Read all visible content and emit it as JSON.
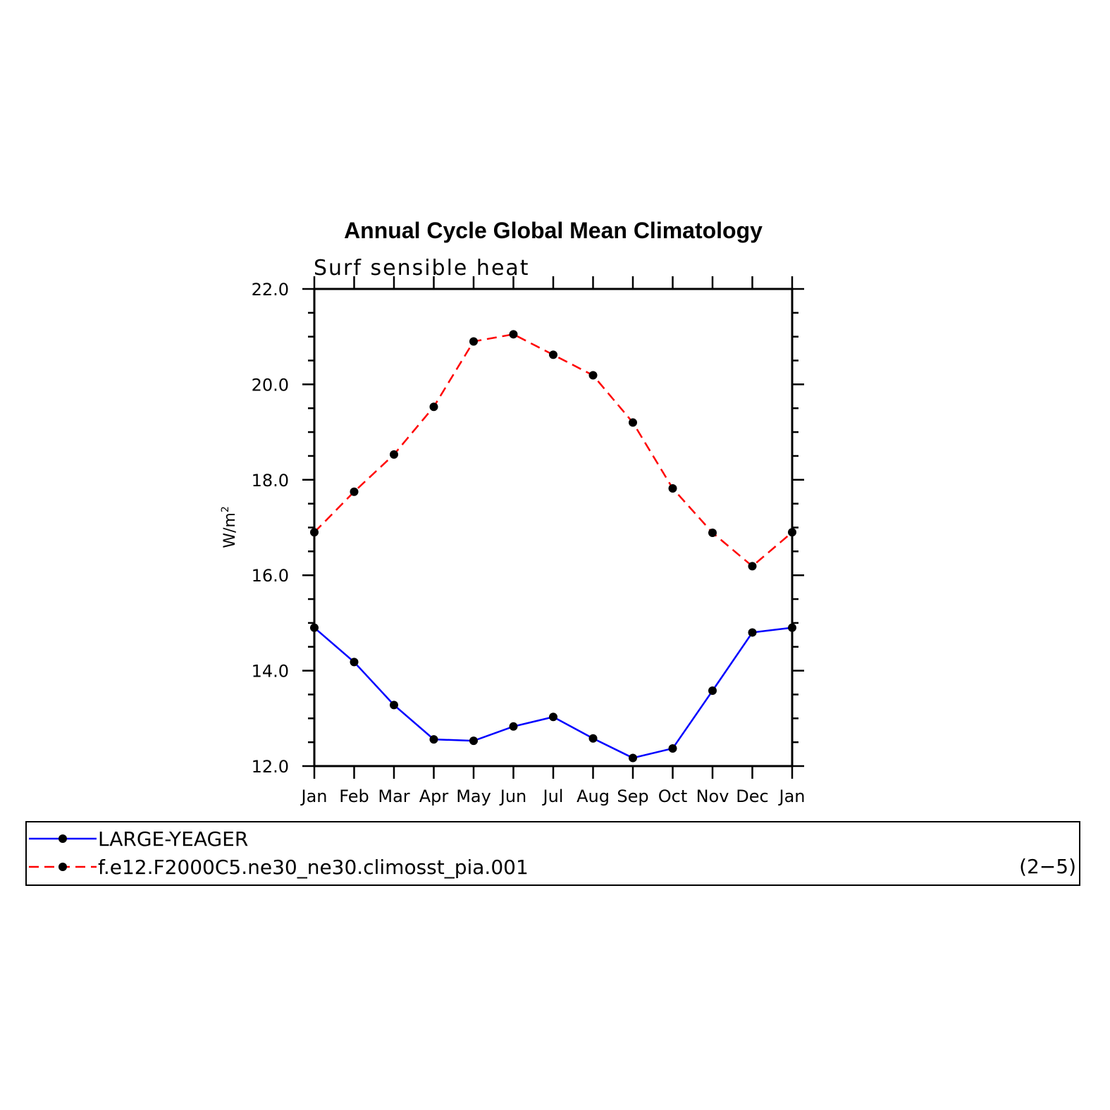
{
  "chart_data": {
    "type": "line",
    "title": "Annual Cycle Global Mean Climatology",
    "subtitle": "Surf  sensible  heat",
    "ylabel": "W/m",
    "ylabel_sup": "2",
    "ylim": [
      12.0,
      22.0
    ],
    "yticks": [
      "12.0",
      "14.0",
      "16.0",
      "18.0",
      "20.0",
      "22.0"
    ],
    "categories": [
      "Jan",
      "Feb",
      "Mar",
      "Apr",
      "May",
      "Jun",
      "Jul",
      "Aug",
      "Sep",
      "Oct",
      "Nov",
      "Dec",
      "Jan"
    ],
    "series": [
      {
        "name": "LARGE-YEAGER",
        "color": "#0000ff",
        "dash": "solid",
        "values": [
          14.9,
          14.18,
          13.28,
          12.56,
          12.53,
          12.83,
          13.03,
          12.58,
          12.17,
          12.37,
          13.58,
          14.8,
          14.9
        ]
      },
      {
        "name": "f.e12.F2000C5.ne30_ne30.climosst_pia.001",
        "color": "#ff0000",
        "dash": "dashed",
        "values": [
          16.9,
          17.75,
          18.53,
          19.53,
          20.9,
          21.05,
          20.62,
          20.19,
          19.2,
          17.82,
          16.89,
          16.19,
          16.9
        ]
      }
    ],
    "marker_color": "#000000",
    "grid": false,
    "legend_position": "bottom",
    "legend_note": "(2−5)"
  }
}
